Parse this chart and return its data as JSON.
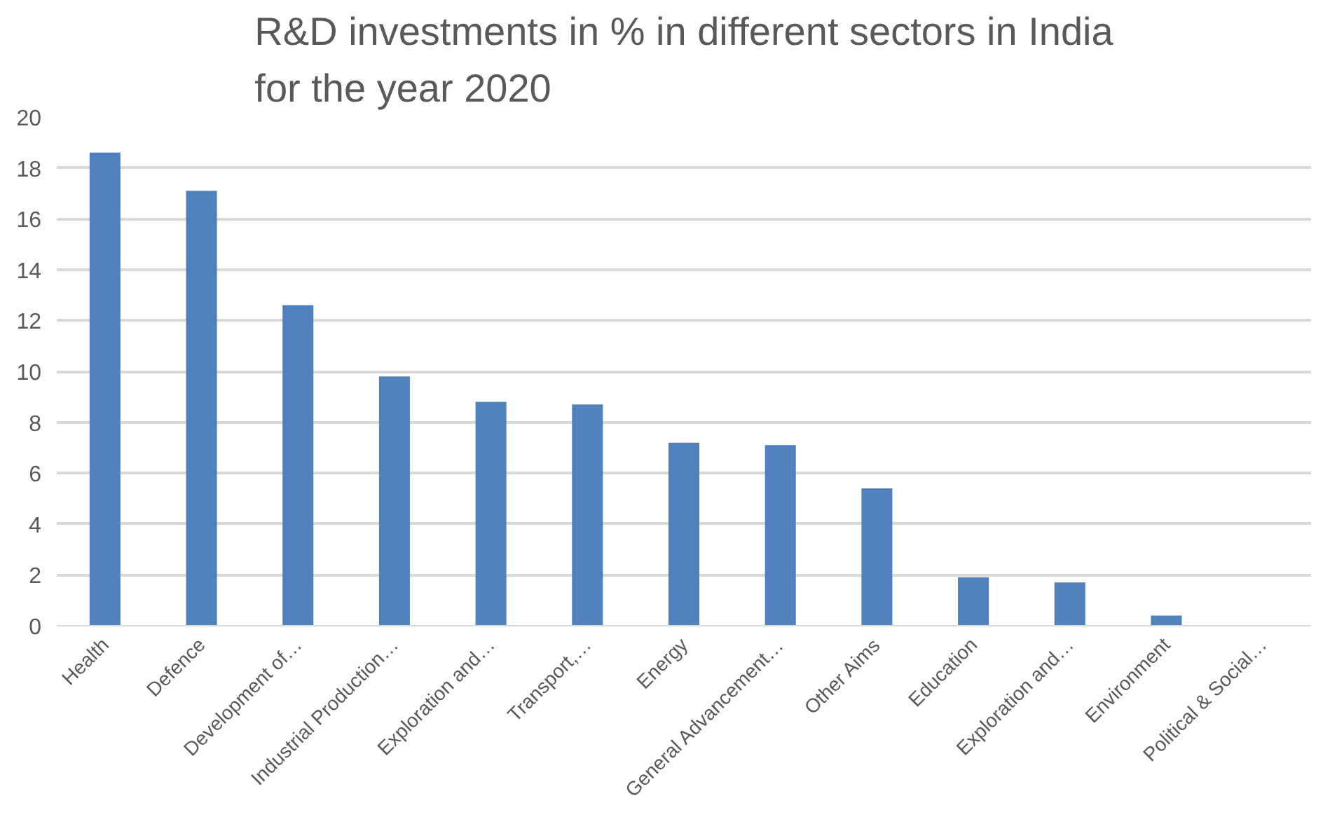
{
  "chart_data": {
    "type": "bar",
    "title": "R&D investments in % in different sectors in India for the year 2020",
    "categories": [
      "Health",
      "Defence",
      "Development of…",
      "Industrial Production…",
      "Exploration and…",
      "Transport,…",
      "Energy",
      "General Advancement…",
      "Other Aims",
      "Education",
      "Exploration and…",
      "Environment",
      "Political & Social…"
    ],
    "values": [
      18.6,
      17.1,
      12.6,
      9.8,
      8.8,
      8.7,
      7.2,
      7.1,
      5.4,
      1.9,
      1.7,
      0.4,
      0
    ],
    "color": "#4f81bd",
    "ylim": [
      0,
      20
    ],
    "yticks": [
      0,
      2,
      4,
      6,
      8,
      10,
      12,
      14,
      16,
      18,
      20
    ],
    "grid": "y"
  }
}
